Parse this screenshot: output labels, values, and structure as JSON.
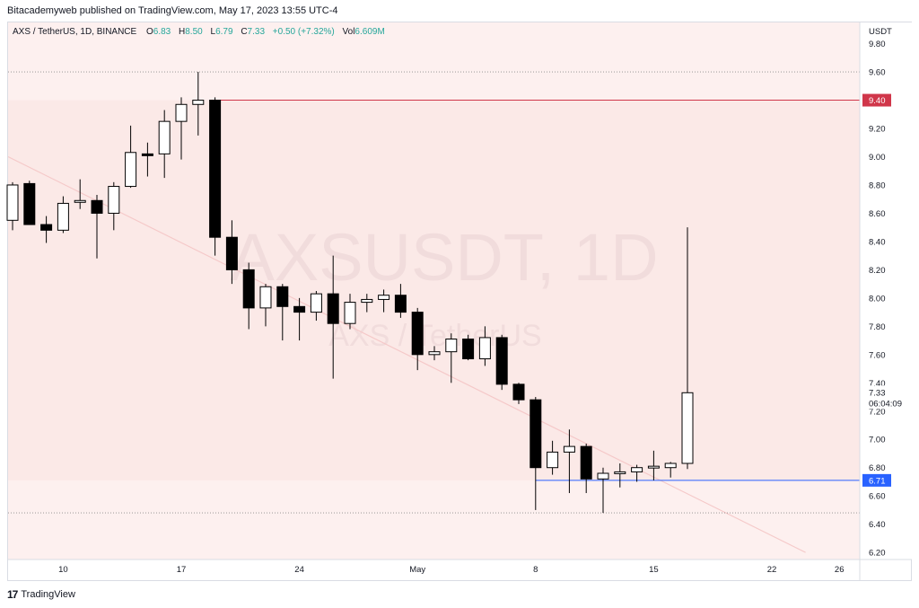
{
  "header": {
    "published": "Bitacademyweb published on TradingView.com, May 17, 2023 13:55 UTC-4"
  },
  "legend": {
    "symbol": "AXS / TetherUS, 1D, BINANCE",
    "o_label": "O",
    "o": "6.83",
    "h_label": "H",
    "h": "8.50",
    "l_label": "L",
    "l": "6.79",
    "c_label": "C",
    "c": "7.33",
    "chg": "+0.50 (+7.32%)",
    "vol_label": "Vol",
    "vol": "6.609M"
  },
  "watermark": {
    "line1": "AXSUSDT, 1D",
    "line2": "AXS / TetherUS"
  },
  "footer": {
    "brand": "TradingView",
    "logo": "17"
  },
  "colors": {
    "bull_fill": "#ffffff",
    "bear_fill": "#000000",
    "wick": "#000000",
    "resistance": "#d0364a",
    "support": "#2962ff",
    "zone": "#fdf0ef",
    "diagonal": "#f5c9c9",
    "up_text": "#26a69a"
  },
  "chart_data": {
    "type": "candlestick",
    "title": "AXS / TetherUS, 1D, BINANCE",
    "y_axis_label": "USDT",
    "ylim": [
      6.15,
      9.95
    ],
    "y_ticks": [
      "9.80",
      "9.60",
      "9.40",
      "9.20",
      "9.00",
      "8.80",
      "8.60",
      "8.40",
      "8.20",
      "8.00",
      "7.80",
      "7.60",
      "7.40",
      "7.20",
      "7.00",
      "6.80",
      "6.60",
      "6.40",
      "6.20"
    ],
    "x_ticks": [
      {
        "label": "10",
        "day": -7
      },
      {
        "label": "17",
        "day": 0
      },
      {
        "label": "24",
        "day": 7
      },
      {
        "label": "May",
        "day": 14
      },
      {
        "label": "8",
        "day": 21
      },
      {
        "label": "15",
        "day": 28
      },
      {
        "label": "22",
        "day": 35
      },
      {
        "label": "26",
        "day": 39
      }
    ],
    "candles": [
      {
        "day": -10,
        "o": 8.55,
        "h": 8.82,
        "l": 8.48,
        "c": 8.8
      },
      {
        "day": -9,
        "o": 8.81,
        "h": 8.83,
        "l": 8.52,
        "c": 8.52
      },
      {
        "day": -8,
        "o": 8.52,
        "h": 8.58,
        "l": 8.39,
        "c": 8.48
      },
      {
        "day": -7,
        "o": 8.48,
        "h": 8.72,
        "l": 8.46,
        "c": 8.67
      },
      {
        "day": -6,
        "o": 8.68,
        "h": 8.84,
        "l": 8.63,
        "c": 8.69
      },
      {
        "day": -5,
        "o": 8.69,
        "h": 8.73,
        "l": 8.28,
        "c": 8.6
      },
      {
        "day": -4,
        "o": 8.6,
        "h": 8.82,
        "l": 8.48,
        "c": 8.79
      },
      {
        "day": -3,
        "o": 8.79,
        "h": 9.22,
        "l": 8.78,
        "c": 9.03
      },
      {
        "day": -2,
        "o": 9.02,
        "h": 9.1,
        "l": 8.86,
        "c": 9.01
      },
      {
        "day": -1,
        "o": 9.02,
        "h": 9.33,
        "l": 8.85,
        "c": 9.25
      },
      {
        "day": 0,
        "o": 9.25,
        "h": 9.42,
        "l": 8.98,
        "c": 9.37
      },
      {
        "day": 1,
        "o": 9.37,
        "h": 9.6,
        "l": 9.15,
        "c": 9.4
      },
      {
        "day": 2,
        "o": 9.4,
        "h": 9.42,
        "l": 8.3,
        "c": 8.43
      },
      {
        "day": 3,
        "o": 8.43,
        "h": 8.55,
        "l": 8.1,
        "c": 8.2
      },
      {
        "day": 4,
        "o": 8.2,
        "h": 8.25,
        "l": 7.78,
        "c": 7.93
      },
      {
        "day": 5,
        "o": 7.93,
        "h": 8.1,
        "l": 7.8,
        "c": 8.08
      },
      {
        "day": 6,
        "o": 8.08,
        "h": 8.1,
        "l": 7.7,
        "c": 7.94
      },
      {
        "day": 7,
        "o": 7.94,
        "h": 8.0,
        "l": 7.7,
        "c": 7.9
      },
      {
        "day": 8,
        "o": 7.9,
        "h": 8.05,
        "l": 7.84,
        "c": 8.03
      },
      {
        "day": 9,
        "o": 8.03,
        "h": 8.3,
        "l": 7.43,
        "c": 7.82
      },
      {
        "day": 10,
        "o": 7.82,
        "h": 8.03,
        "l": 7.78,
        "c": 7.97
      },
      {
        "day": 11,
        "o": 7.97,
        "h": 8.03,
        "l": 7.9,
        "c": 7.99
      },
      {
        "day": 12,
        "o": 7.99,
        "h": 8.06,
        "l": 7.9,
        "c": 8.02
      },
      {
        "day": 13,
        "o": 8.02,
        "h": 8.1,
        "l": 7.86,
        "c": 7.9
      },
      {
        "day": 14,
        "o": 7.9,
        "h": 7.93,
        "l": 7.49,
        "c": 7.6
      },
      {
        "day": 15,
        "o": 7.6,
        "h": 7.66,
        "l": 7.56,
        "c": 7.62
      },
      {
        "day": 16,
        "o": 7.62,
        "h": 7.75,
        "l": 7.4,
        "c": 7.71
      },
      {
        "day": 17,
        "o": 7.71,
        "h": 7.74,
        "l": 7.56,
        "c": 7.57
      },
      {
        "day": 18,
        "o": 7.57,
        "h": 7.8,
        "l": 7.52,
        "c": 7.72
      },
      {
        "day": 19,
        "o": 7.72,
        "h": 7.74,
        "l": 7.35,
        "c": 7.39
      },
      {
        "day": 20,
        "o": 7.39,
        "h": 7.4,
        "l": 7.25,
        "c": 7.28
      },
      {
        "day": 21,
        "o": 7.28,
        "h": 7.3,
        "l": 6.5,
        "c": 6.8
      },
      {
        "day": 22,
        "o": 6.8,
        "h": 6.99,
        "l": 6.75,
        "c": 6.91
      },
      {
        "day": 23,
        "o": 6.91,
        "h": 7.07,
        "l": 6.62,
        "c": 6.95
      },
      {
        "day": 24,
        "o": 6.95,
        "h": 6.97,
        "l": 6.62,
        "c": 6.72
      },
      {
        "day": 25,
        "o": 6.72,
        "h": 6.8,
        "l": 6.48,
        "c": 6.76
      },
      {
        "day": 26,
        "o": 6.76,
        "h": 6.83,
        "l": 6.66,
        "c": 6.77
      },
      {
        "day": 27,
        "o": 6.77,
        "h": 6.82,
        "l": 6.7,
        "c": 6.8
      },
      {
        "day": 28,
        "o": 6.8,
        "h": 6.92,
        "l": 6.71,
        "c": 6.81
      },
      {
        "day": 29,
        "o": 6.8,
        "h": 6.84,
        "l": 6.73,
        "c": 6.83
      },
      {
        "day": 30,
        "o": 6.83,
        "h": 8.5,
        "l": 6.79,
        "c": 7.33
      }
    ],
    "resistance": {
      "value": 9.4,
      "label": "9.40",
      "from_day": 2
    },
    "support": {
      "value": 6.71,
      "label": "6.71",
      "from_day": 21
    },
    "last_price": {
      "value": 7.33,
      "label": "7.33",
      "countdown": "06:04:09"
    },
    "dotted_levels": [
      9.6,
      6.48
    ],
    "diagonal_from": {
      "day": -10,
      "value": 9.0
    },
    "diagonal_to": {
      "day": 37,
      "value": 6.2
    }
  }
}
